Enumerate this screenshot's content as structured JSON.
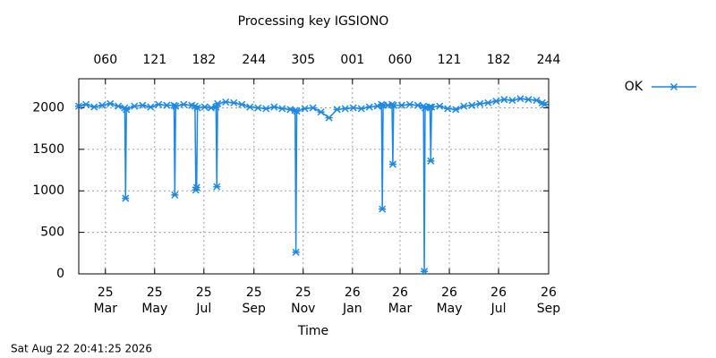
{
  "chart_data": {
    "type": "line",
    "title": "Processing key IGSIONO",
    "xlabel": "Time",
    "footer": "Sat Aug 22 20:41:25 2026",
    "legend": "outside-right",
    "grid": true,
    "xlim": [
      "2025-01-27",
      "2026-09-01"
    ],
    "ylim": [
      0,
      2350
    ],
    "yticks": [
      0,
      500,
      1000,
      1500,
      2000
    ],
    "xticks": [
      {
        "value": "2025-03-01",
        "label": "25\nMar"
      },
      {
        "value": "2025-05-01",
        "label": "25\nMay"
      },
      {
        "value": "2025-07-01",
        "label": "25\nJul"
      },
      {
        "value": "2025-09-01",
        "label": "25\nSep"
      },
      {
        "value": "2025-11-01",
        "label": "25\nNov"
      },
      {
        "value": "2026-01-01",
        "label": "26\nJan"
      },
      {
        "value": "2026-03-01",
        "label": "26\nMar"
      },
      {
        "value": "2026-05-01",
        "label": "26\nMay"
      },
      {
        "value": "2026-07-01",
        "label": "26\nJul"
      },
      {
        "value": "2026-09-01",
        "label": "26\nSep"
      }
    ],
    "x2ticks": [
      {
        "value": "2025-03-01",
        "label": "060"
      },
      {
        "value": "2025-05-01",
        "label": "121"
      },
      {
        "value": "2025-07-01",
        "label": "182"
      },
      {
        "value": "2025-09-01",
        "label": "244"
      },
      {
        "value": "2025-11-01",
        "label": "305"
      },
      {
        "value": "2026-01-01",
        "label": "001"
      },
      {
        "value": "2026-03-01",
        "label": "060"
      },
      {
        "value": "2026-05-01",
        "label": "121"
      },
      {
        "value": "2026-07-01",
        "label": "182"
      },
      {
        "value": "2026-09-01",
        "label": "244"
      }
    ],
    "x": [
      "2025-01-27",
      "2025-02-05",
      "2025-02-15",
      "2025-02-25",
      "2025-03-07",
      "2025-03-17",
      "2025-03-25",
      "2025-03-26",
      "2025-03-27",
      "2025-04-06",
      "2025-04-16",
      "2025-04-26",
      "2025-05-06",
      "2025-05-16",
      "2025-05-25",
      "2025-05-26",
      "2025-05-27",
      "2025-06-06",
      "2025-06-16",
      "2025-06-20",
      "2025-06-21",
      "2025-06-22",
      "2025-06-23",
      "2025-07-02",
      "2025-07-10",
      "2025-07-16",
      "2025-07-17",
      "2025-07-18",
      "2025-07-28",
      "2025-08-07",
      "2025-08-17",
      "2025-08-27",
      "2025-09-06",
      "2025-09-16",
      "2025-09-26",
      "2025-10-06",
      "2025-10-16",
      "2025-10-22",
      "2025-10-23",
      "2025-10-24",
      "2025-11-03",
      "2025-11-13",
      "2025-11-23",
      "2025-12-03",
      "2025-12-13",
      "2025-12-23",
      "2026-01-02",
      "2026-01-12",
      "2026-01-22",
      "2026-02-01",
      "2026-02-06",
      "2026-02-07",
      "2026-02-08",
      "2026-02-14",
      "2026-02-19",
      "2026-02-20",
      "2026-02-21",
      "2026-03-03",
      "2026-03-13",
      "2026-03-23",
      "2026-03-30",
      "2026-03-31",
      "2026-04-01",
      "2026-04-07",
      "2026-04-08",
      "2026-04-09",
      "2026-04-19",
      "2026-04-29",
      "2026-05-09",
      "2026-05-19",
      "2026-05-29",
      "2026-06-08",
      "2026-06-18",
      "2026-06-28",
      "2026-07-08",
      "2026-07-18",
      "2026-07-28",
      "2026-08-07",
      "2026-08-17",
      "2026-08-24",
      "2026-08-27"
    ],
    "series": [
      {
        "name": "OK",
        "color": "#1e88e5",
        "values": [
          2020,
          2040,
          2010,
          2030,
          2050,
          2020,
          2000,
          910,
          1980,
          2020,
          2030,
          2010,
          2040,
          2030,
          2030,
          950,
          2020,
          2040,
          2030,
          2020,
          1010,
          1040,
          2000,
          2010,
          2000,
          2010,
          1050,
          2050,
          2070,
          2060,
          2040,
          2010,
          2000,
          1990,
          2010,
          1990,
          1980,
          1970,
          260,
          1960,
          1990,
          2000,
          1950,
          1880,
          1980,
          1990,
          2000,
          1990,
          2010,
          2020,
          2040,
          780,
          2030,
          2030,
          2040,
          1320,
          2030,
          2030,
          2040,
          2030,
          2020,
          30,
          2000,
          2010,
          1360,
          2010,
          2020,
          1990,
          1980,
          2020,
          2030,
          2050,
          2060,
          2080,
          2100,
          2090,
          2110,
          2100,
          2090,
          2060,
          2040
        ]
      }
    ]
  }
}
